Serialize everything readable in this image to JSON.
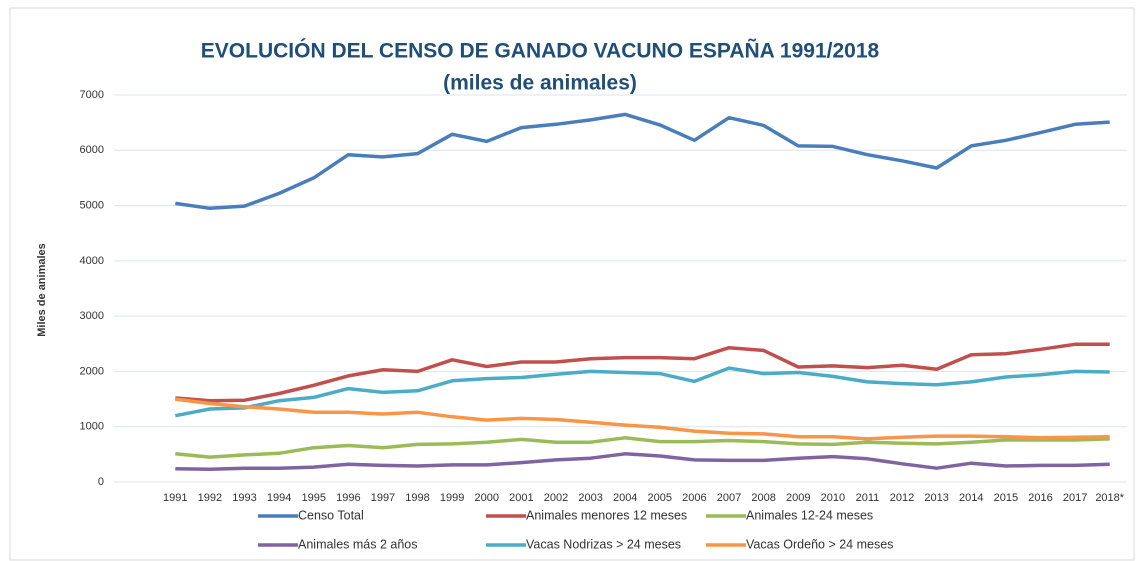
{
  "chart_data": {
    "type": "line",
    "title": "EVOLUCIÓN DEL CENSO DE GANADO VACUNO ESPAÑA 1991/2018",
    "subtitle": "(miles de animales)",
    "y_label": "Miles de animales",
    "categories": [
      "1991",
      "1992",
      "1993",
      "1994",
      "1995",
      "1996",
      "1997",
      "1998",
      "1999",
      "2000",
      "2001",
      "2002",
      "2003",
      "2004",
      "2005",
      "2006",
      "2007",
      "2008",
      "2009",
      "2010",
      "2011",
      "2012",
      "2013",
      "2014",
      "2015",
      "2016",
      "2017",
      "2018*"
    ],
    "series": [
      {
        "name": "Censo Total",
        "color": "#4a7ebb",
        "values": [
          5040,
          4950,
          4990,
          5220,
          5500,
          5920,
          5880,
          5940,
          6290,
          6160,
          6410,
          6470,
          6550,
          6650,
          6460,
          6180,
          6590,
          6450,
          6080,
          6070,
          5920,
          5810,
          5680,
          6080,
          6180,
          6320,
          6470,
          6510
        ]
      },
      {
        "name": "Animales menores 12 meses",
        "color": "#c0504d",
        "values": [
          1520,
          1470,
          1480,
          1600,
          1750,
          1920,
          2030,
          2000,
          2210,
          2090,
          2170,
          2170,
          2230,
          2250,
          2250,
          2230,
          2430,
          2380,
          2080,
          2100,
          2070,
          2110,
          2040,
          2300,
          2320,
          2400,
          2490,
          2490
        ]
      },
      {
        "name": "Animales 12-24 meses",
        "color": "#9bbb59",
        "values": [
          510,
          450,
          490,
          520,
          620,
          660,
          620,
          680,
          690,
          720,
          770,
          720,
          720,
          800,
          730,
          730,
          750,
          730,
          690,
          680,
          720,
          700,
          690,
          720,
          760,
          760,
          760,
          780
        ]
      },
      {
        "name": "Animales más 2 años",
        "color": "#8064a2",
        "values": [
          240,
          230,
          250,
          250,
          270,
          320,
          300,
          290,
          310,
          310,
          350,
          400,
          430,
          510,
          470,
          400,
          390,
          390,
          430,
          460,
          420,
          330,
          250,
          340,
          290,
          300,
          300,
          320
        ]
      },
      {
        "name": "Vacas Nodrizas > 24 meses",
        "color": "#4bacc6",
        "values": [
          1200,
          1320,
          1340,
          1470,
          1530,
          1690,
          1620,
          1650,
          1830,
          1870,
          1890,
          1950,
          2000,
          1980,
          1960,
          1820,
          2060,
          1960,
          1980,
          1910,
          1810,
          1780,
          1760,
          1810,
          1900,
          1940,
          2000,
          1990
        ]
      },
      {
        "name": "Vacas Ordeño > 24 meses",
        "color": "#f79646",
        "values": [
          1500,
          1420,
          1360,
          1320,
          1260,
          1260,
          1230,
          1260,
          1180,
          1120,
          1150,
          1130,
          1080,
          1030,
          990,
          920,
          880,
          870,
          820,
          820,
          780,
          810,
          830,
          830,
          820,
          800,
          810,
          820
        ]
      }
    ],
    "ylim": [
      0,
      7000
    ],
    "yticks": [
      0,
      1000,
      2000,
      3000,
      4000,
      5000,
      6000,
      7000
    ],
    "grid": true
  }
}
